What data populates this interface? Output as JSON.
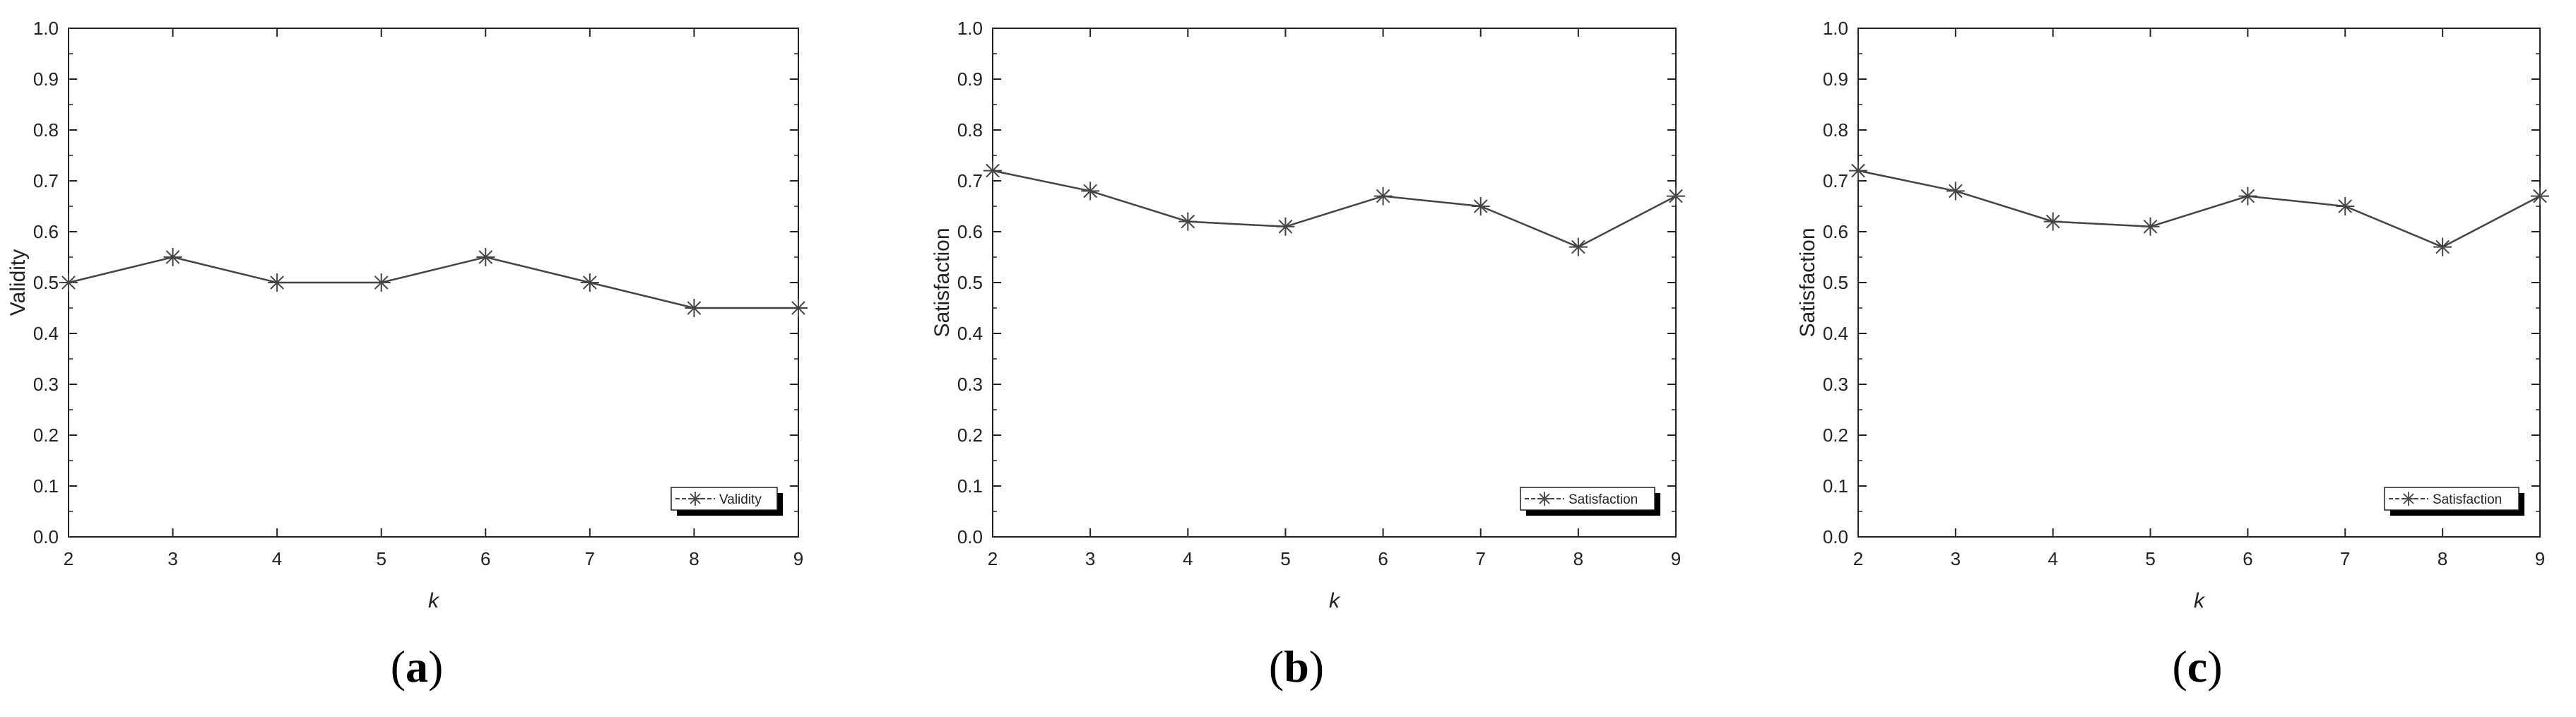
{
  "chart_data": [
    {
      "type": "line",
      "panel_label": "a",
      "xlabel": "k",
      "ylabel": "Validity",
      "xlim": [
        2,
        9
      ],
      "ylim": [
        0,
        1
      ],
      "x_ticks": [
        2,
        3,
        4,
        5,
        6,
        7,
        8,
        9
      ],
      "y_ticks": [
        "0.0",
        "0.1",
        "0.2",
        "0.3",
        "0.4",
        "0.5",
        "0.6",
        "0.7",
        "0.8",
        "0.9",
        "1.0"
      ],
      "grid": false,
      "legend_position": "bottom-right",
      "marker": "asterisk",
      "series": [
        {
          "name": "Validity",
          "x": [
            2,
            3,
            4,
            5,
            6,
            7,
            8,
            9
          ],
          "values": [
            0.5,
            0.55,
            0.5,
            0.5,
            0.55,
            0.5,
            0.45,
            0.45
          ]
        }
      ]
    },
    {
      "type": "line",
      "panel_label": "b",
      "xlabel": "k",
      "ylabel": "Satisfaction",
      "xlim": [
        2,
        9
      ],
      "ylim": [
        0,
        1
      ],
      "x_ticks": [
        2,
        3,
        4,
        5,
        6,
        7,
        8,
        9
      ],
      "y_ticks": [
        "0.0",
        "0.1",
        "0.2",
        "0.3",
        "0.4",
        "0.5",
        "0.6",
        "0.7",
        "0.8",
        "0.9",
        "1.0"
      ],
      "grid": false,
      "legend_position": "bottom-right",
      "marker": "asterisk",
      "series": [
        {
          "name": "Satisfaction",
          "x": [
            2,
            3,
            4,
            5,
            6,
            7,
            8,
            9
          ],
          "values": [
            0.72,
            0.68,
            0.62,
            0.61,
            0.67,
            0.65,
            0.57,
            0.67
          ]
        }
      ]
    },
    {
      "type": "line",
      "panel_label": "c",
      "xlabel": "k",
      "ylabel": "Satisfaction",
      "xlim": [
        2,
        9
      ],
      "ylim": [
        0,
        1
      ],
      "x_ticks": [
        2,
        3,
        4,
        5,
        6,
        7,
        8,
        9
      ],
      "y_ticks": [
        "0.0",
        "0.1",
        "0.2",
        "0.3",
        "0.4",
        "0.5",
        "0.6",
        "0.7",
        "0.8",
        "0.9",
        "1.0"
      ],
      "grid": false,
      "legend_position": "bottom-right",
      "marker": "asterisk",
      "series": [
        {
          "name": "Satisfaction",
          "x": [
            2,
            3,
            4,
            5,
            6,
            7,
            8,
            9
          ],
          "values": [
            0.72,
            0.68,
            0.62,
            0.61,
            0.67,
            0.65,
            0.57,
            0.67
          ]
        }
      ]
    }
  ],
  "colors": {
    "line": "#444444",
    "axis": "#222222",
    "legend_shadow": "#000000"
  }
}
